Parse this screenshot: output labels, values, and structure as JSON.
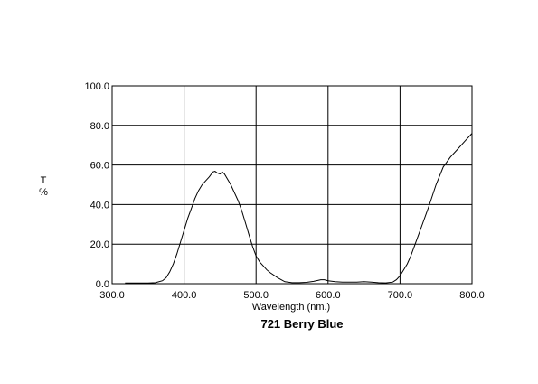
{
  "chart_data": {
    "type": "line",
    "title": "721 Berry Blue",
    "xlabel": "Wavelength (nm.)",
    "ylabel_top": "T",
    "ylabel_bottom": "%",
    "xlim": [
      300,
      800
    ],
    "ylim": [
      0,
      100
    ],
    "x_ticks": [
      "300.0",
      "400.0",
      "500.0",
      "600.0",
      "700.0",
      "800.0"
    ],
    "y_ticks": [
      "0.0",
      "20.0",
      "40.0",
      "60.0",
      "80.0",
      "100.0"
    ],
    "grid": true,
    "series": [
      {
        "color": "#000000",
        "x": [
          318,
          330,
          340,
          350,
          360,
          370,
          375,
          380,
          385,
          390,
          395,
          400,
          405,
          410,
          415,
          420,
          425,
          430,
          435,
          440,
          443,
          446,
          450,
          453,
          456,
          460,
          465,
          470,
          475,
          480,
          485,
          490,
          495,
          500,
          505,
          510,
          515,
          520,
          530,
          540,
          550,
          560,
          570,
          580,
          590,
          595,
          600,
          610,
          620,
          640,
          650,
          660,
          670,
          680,
          690,
          695,
          700,
          705,
          710,
          715,
          720,
          730,
          740,
          750,
          760,
          770,
          780,
          790,
          800
        ],
        "y": [
          0.3,
          0.3,
          0.3,
          0.3,
          0.5,
          1.5,
          3,
          6,
          10,
          15,
          21,
          27,
          33,
          38,
          43,
          47,
          50,
          52,
          54,
          56.5,
          56.8,
          56,
          55.5,
          56.5,
          55.5,
          53,
          50,
          46,
          42,
          37,
          31,
          25,
          19,
          14,
          11,
          9,
          7,
          5.5,
          3,
          1,
          0.5,
          0.5,
          0.7,
          1.2,
          2,
          2,
          1.5,
          1,
          0.8,
          0.8,
          1,
          0.8,
          0.5,
          0.4,
          0.8,
          2,
          4,
          7,
          10,
          14,
          19,
          29,
          39,
          50,
          59,
          64,
          68,
          72,
          76
        ]
      }
    ]
  }
}
